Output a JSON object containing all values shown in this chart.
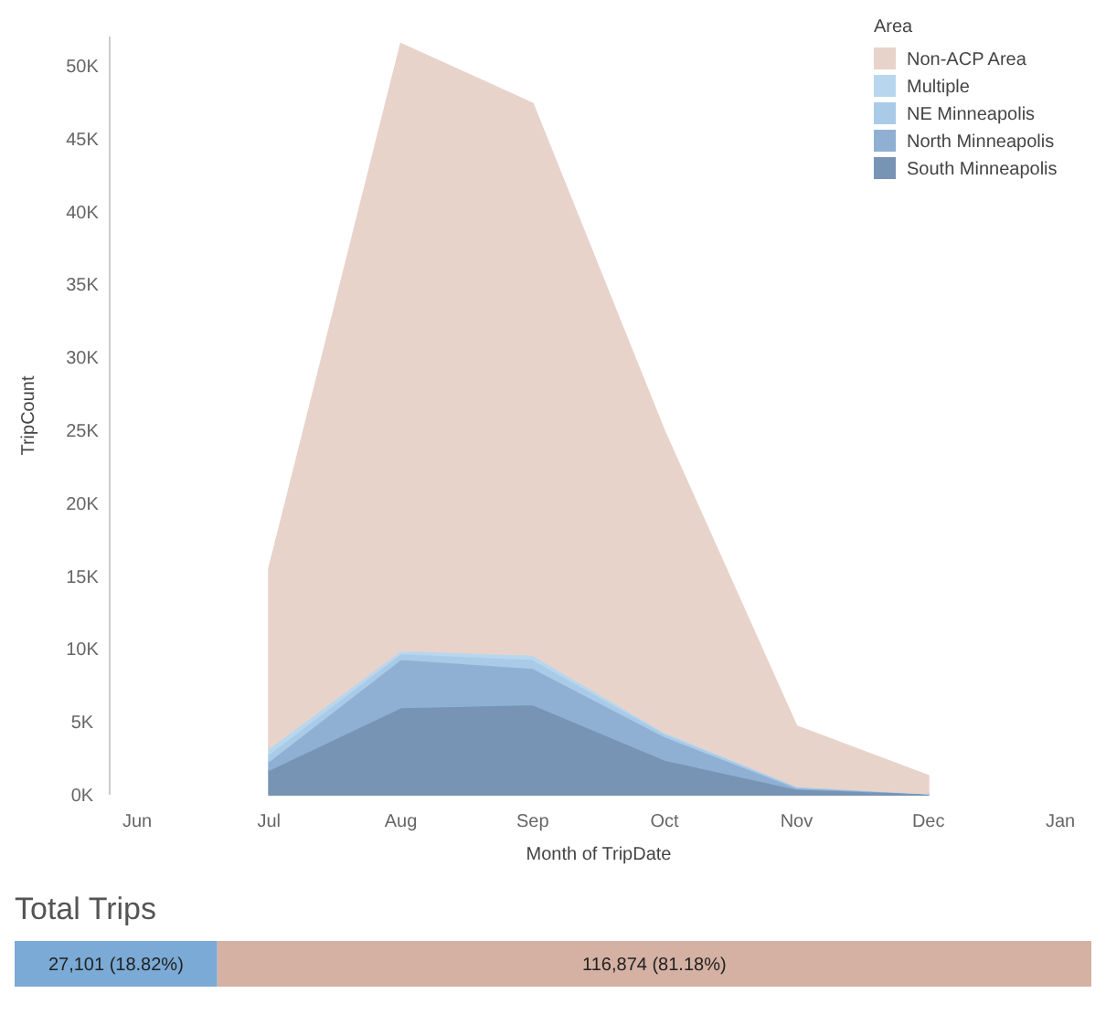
{
  "chart_data": [
    {
      "type": "area",
      "stacked": true,
      "xlabel": "Month of TripDate",
      "ylabel": "TripCount",
      "legend_title": "Area",
      "legend": "top right",
      "categories": [
        "Jun",
        "Jul",
        "Aug",
        "Sep",
        "Oct",
        "Nov",
        "Dec",
        "Jan"
      ],
      "ylim": [
        0,
        52000
      ],
      "yticks": [
        {
          "value": 0,
          "label": "0K"
        },
        {
          "value": 5000,
          "label": "5K"
        },
        {
          "value": 10000,
          "label": "10K"
        },
        {
          "value": 15000,
          "label": "15K"
        },
        {
          "value": 20000,
          "label": "20K"
        },
        {
          "value": 25000,
          "label": "25K"
        },
        {
          "value": 30000,
          "label": "30K"
        },
        {
          "value": 35000,
          "label": "35K"
        },
        {
          "value": 40000,
          "label": "40K"
        },
        {
          "value": 45000,
          "label": "45K"
        },
        {
          "value": 50000,
          "label": "50K"
        }
      ],
      "series": [
        {
          "name": "South Minneapolis",
          "color": "#7894b4",
          "values": [
            null,
            1700,
            6000,
            6200,
            2400,
            400,
            100,
            null
          ]
        },
        {
          "name": "North Minneapolis",
          "color": "#8fb0d3",
          "values": [
            null,
            600,
            3300,
            2500,
            1600,
            100,
            0,
            null
          ]
        },
        {
          "name": "NE Minneapolis",
          "color": "#a9cbe8",
          "values": [
            null,
            500,
            400,
            600,
            200,
            100,
            0,
            null
          ]
        },
        {
          "name": "Multiple",
          "color": "#b8d7ee",
          "values": [
            null,
            400,
            200,
            300,
            100,
            0,
            0,
            null
          ]
        },
        {
          "name": "Non-ACP Area",
          "color": "#e8d3cb",
          "values": [
            null,
            12300,
            41600,
            37800,
            20600,
            4100,
            1200,
            null
          ]
        }
      ]
    },
    {
      "type": "bar",
      "orientation": "horizontal",
      "stacked": true,
      "title": "Total Trips",
      "categories": [
        null
      ],
      "series": [
        {
          "color": "#7aaad5",
          "values": [
            27101
          ],
          "value_labels": [
            "27,101 (18.82%)"
          ]
        },
        {
          "color": "#d5b1a3",
          "values": [
            116874
          ],
          "value_labels": [
            "116,874 (81.18%)"
          ]
        }
      ]
    }
  ]
}
